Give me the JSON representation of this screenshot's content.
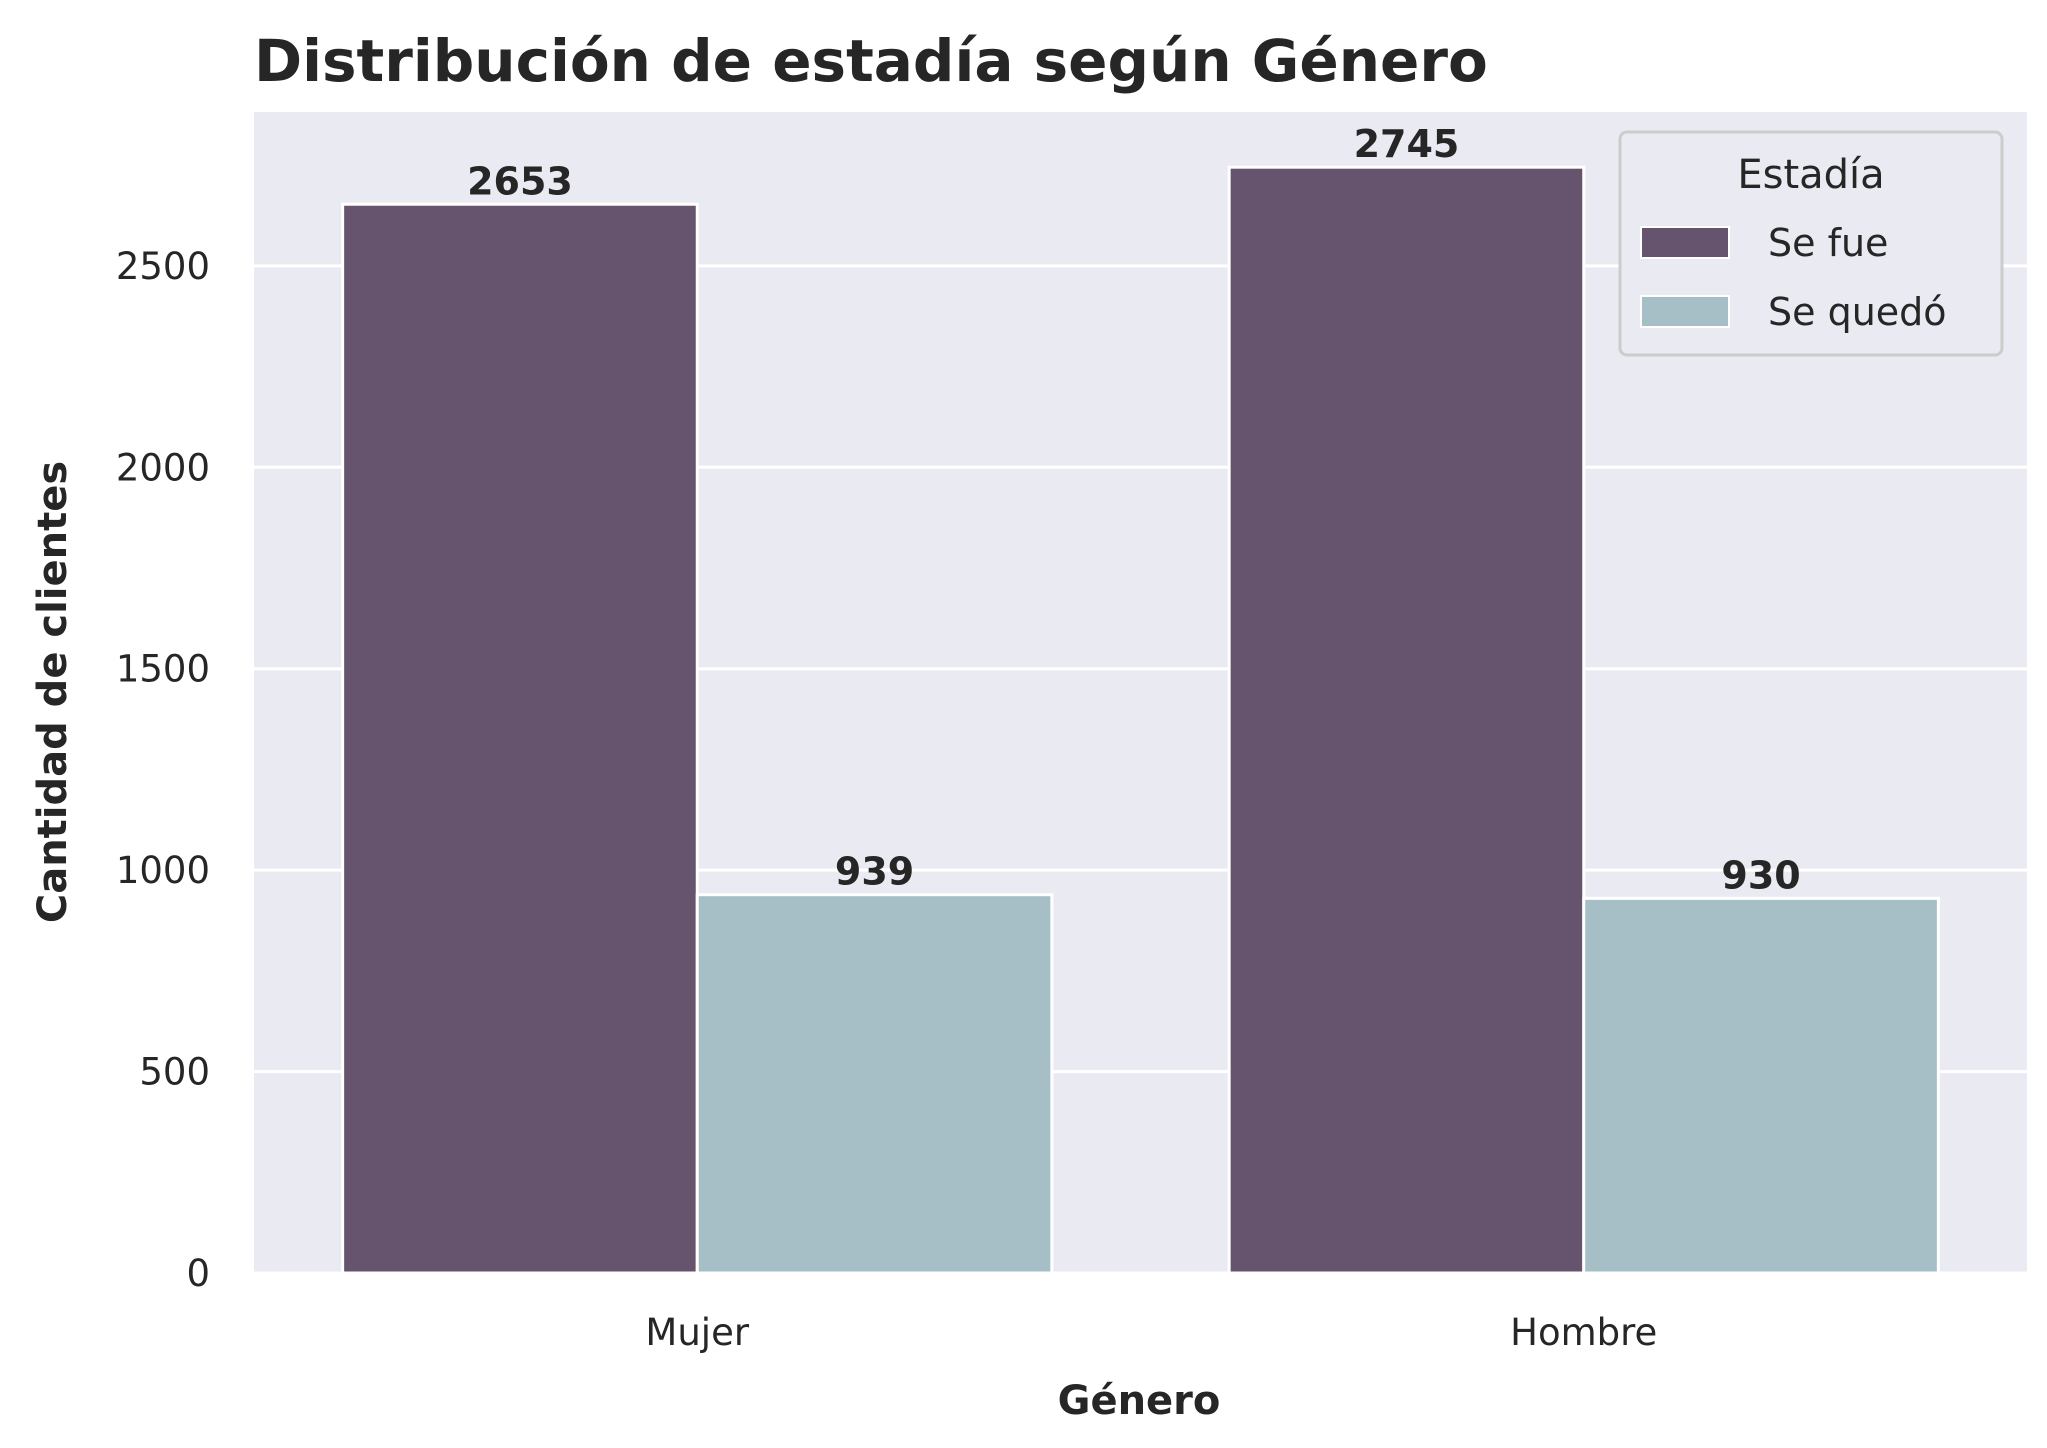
{
  "chart_data": {
    "type": "bar",
    "title": "Distribución de estadía según Género",
    "xlabel": "Género",
    "ylabel": "Cantidad de clientes",
    "categories": [
      "Mujer",
      "Hombre"
    ],
    "series": [
      {
        "name": "Se fue",
        "values": [
          2653,
          2745
        ],
        "color": "#66536e"
      },
      {
        "name": "Se quedó",
        "values": [
          939,
          930
        ],
        "color": "#a6bec5"
      }
    ],
    "yticks": [
      0,
      500,
      1000,
      1500,
      2000,
      2500
    ],
    "ylim": [
      0,
      2882
    ],
    "grid": true,
    "legend": {
      "title": "Estadía",
      "position": "top-right"
    },
    "background": "#eaeaf2",
    "gridColor": "#ffffff"
  }
}
